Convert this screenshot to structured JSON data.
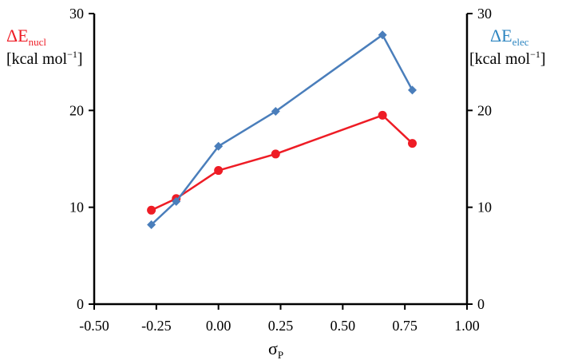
{
  "chart_data": {
    "type": "line",
    "x_label": {
      "symbol": "σ",
      "subscript": "P"
    },
    "y_left_label": {
      "symbol": "ΔE",
      "subscript": "nucl",
      "unit_prefix": "[kcal mol",
      "unit_sup": "−1",
      "unit_suffix": "]"
    },
    "y_right_label": {
      "symbol": "ΔE",
      "subscript": "elec",
      "unit_prefix": "[kcal mol",
      "unit_sup": "−1",
      "unit_suffix": "]"
    },
    "xlim": [
      -0.5,
      1.0
    ],
    "ylim": [
      0,
      30
    ],
    "x_ticks": [
      "-0.50",
      "-0.25",
      "0.00",
      "0.25",
      "0.50",
      "0.75",
      "1.00"
    ],
    "y_ticks": [
      "0",
      "10",
      "20",
      "30"
    ],
    "grid": false,
    "series": [
      {
        "axis": "left",
        "color": "#ee1c25",
        "marker": "circle",
        "x": [
          -0.27,
          -0.17,
          0.0,
          0.23,
          0.66,
          0.78
        ],
        "y": [
          9.7,
          10.9,
          13.8,
          15.5,
          19.5,
          16.6
        ]
      },
      {
        "axis": "right",
        "color": "#4a7ebb",
        "marker": "diamond",
        "x": [
          -0.27,
          -0.17,
          0.0,
          0.23,
          0.66,
          0.78
        ],
        "y": [
          8.2,
          10.6,
          16.3,
          19.9,
          27.8,
          22.1
        ]
      }
    ],
    "colors": {
      "left_label": "#ee1c25",
      "right_label": "#2e86c1",
      "axis": "#000000"
    }
  }
}
